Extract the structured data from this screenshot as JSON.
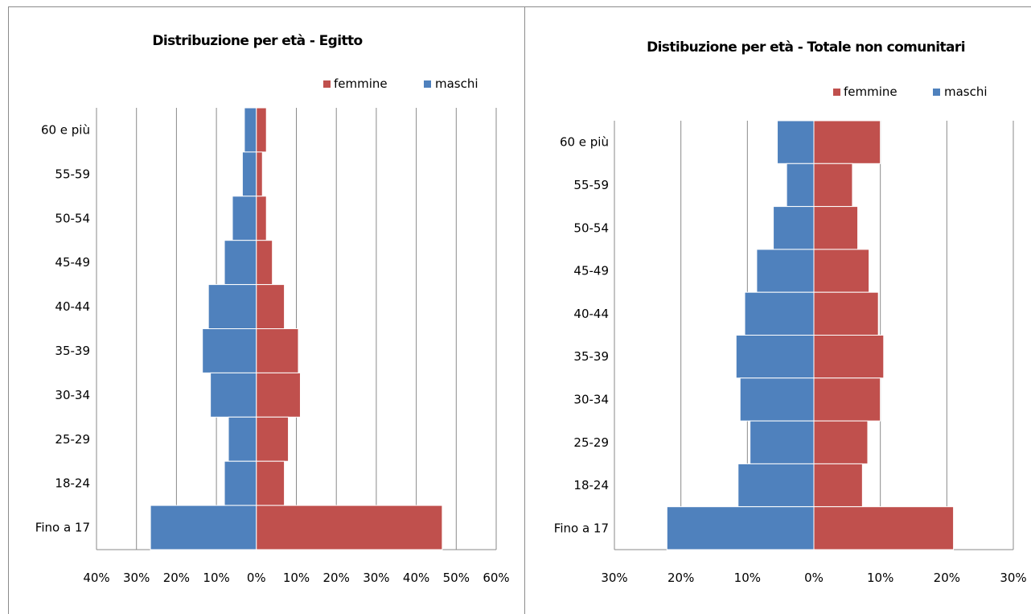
{
  "chart_data": [
    {
      "type": "bar",
      "orientation": "horizontal",
      "layout": "population-pyramid",
      "title": "Distribuzione per età - Egitto",
      "categories": [
        "60 e più",
        "55-59",
        "50-54",
        "45-49",
        "40-44",
        "35-39",
        "30-34",
        "25-29",
        "18-24",
        "Fino a 17"
      ],
      "series": [
        {
          "name": "femmine",
          "color": "#c0504d",
          "values": [
            2.5,
            1.5,
            2.5,
            4,
            7,
            10.5,
            11,
            8,
            7,
            46.5
          ]
        },
        {
          "name": "maschi",
          "color": "#4f81bd",
          "values": [
            3,
            3.5,
            6,
            8,
            12,
            13.5,
            11.5,
            7,
            8,
            26.5
          ]
        }
      ],
      "x_ticks": [
        "40%",
        "30%",
        "20%",
        "10%",
        "0%",
        "10%",
        "20%",
        "30%",
        "40%",
        "50%",
        "60%"
      ],
      "xlim": [
        -40,
        60
      ],
      "legend_position": "top-right",
      "grid": "vertical"
    },
    {
      "type": "bar",
      "orientation": "horizontal",
      "layout": "population-pyramid",
      "title": "Distibuzione per età - Totale non comunitari",
      "categories": [
        "60 e più",
        "55-59",
        "50-54",
        "45-49",
        "40-44",
        "35-39",
        "30-34",
        "25-29",
        "18-24",
        "Fino a 17"
      ],
      "series": [
        {
          "name": "femmine",
          "color": "#c0504d",
          "values": [
            10,
            5.8,
            6.6,
            8.3,
            9.7,
            10.5,
            10,
            8.1,
            7.3,
            21
          ]
        },
        {
          "name": "maschi",
          "color": "#4f81bd",
          "values": [
            5.5,
            4.1,
            6.1,
            8.6,
            10.4,
            11.7,
            11.1,
            9.6,
            11.4,
            22.1
          ]
        }
      ],
      "x_ticks": [
        "30%",
        "20%",
        "10%",
        "0%",
        "10%",
        "20%",
        "30%"
      ],
      "xlim": [
        -30,
        30
      ],
      "legend_position": "top-right",
      "grid": "vertical"
    }
  ]
}
